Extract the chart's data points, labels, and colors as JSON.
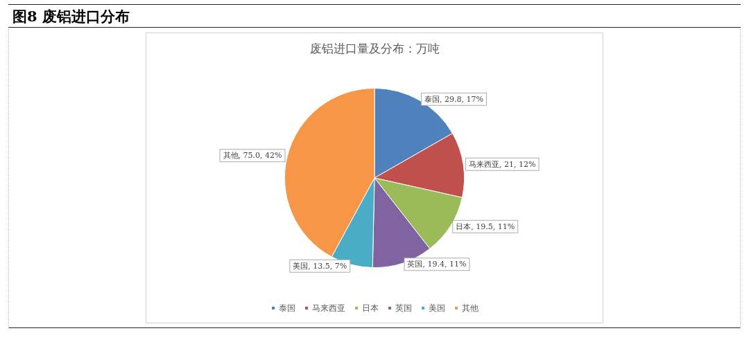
{
  "chart_data": {
    "type": "pie",
    "title": "图8 废铝进口分布",
    "subtitle": "废铝进口量及分布：万吨",
    "categories": [
      "泰国",
      "马来西亚",
      "日本",
      "英国",
      "美国",
      "其他"
    ],
    "values": [
      29.8,
      21,
      19.5,
      19.4,
      13.5,
      75.0
    ],
    "value_labels": [
      "泰国, 29.8, 17%",
      "马来西亚, 21, 12%",
      "日本, 19.5, 11%",
      "英国, 19.4, 11%",
      "美国, 13.5, 7%",
      "其他, 75.0, 42%"
    ],
    "colors": [
      "#4f81bd",
      "#c0504d",
      "#9bbb59",
      "#8064a2",
      "#4bacc6",
      "#f79646"
    ],
    "legend": "bottom"
  }
}
